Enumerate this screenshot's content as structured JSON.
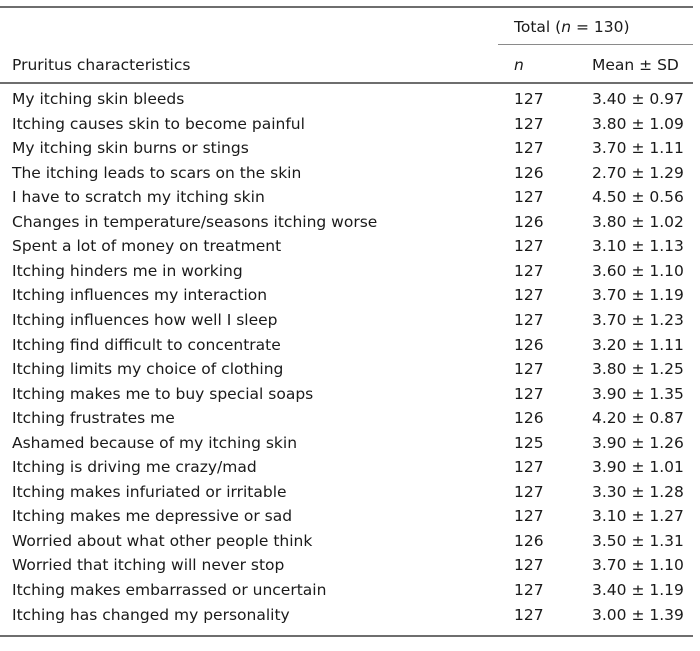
{
  "header": {
    "total_prefix": "Total (",
    "total_n_symbol": "n",
    "total_suffix": " = 130)",
    "label_column": "Pruritus characteristics",
    "n_column": "n",
    "mean_column": "Mean ± SD"
  },
  "rows": [
    {
      "label": "My itching skin bleeds",
      "n": "127",
      "mean": "3.40 ± 0.97"
    },
    {
      "label": "Itching causes skin to become painful",
      "n": "127",
      "mean": "3.80 ± 1.09"
    },
    {
      "label": "My itching skin burns or stings",
      "n": "127",
      "mean": "3.70 ± 1.11"
    },
    {
      "label": "The itching leads to scars on the skin",
      "n": "126",
      "mean": "2.70 ± 1.29"
    },
    {
      "label": "I have to scratch my itching skin",
      "n": "127",
      "mean": "4.50 ± 0.56"
    },
    {
      "label": "Changes in temperature/seasons itching worse",
      "n": "126",
      "mean": "3.80 ± 1.02"
    },
    {
      "label": "Spent a lot of money on treatment",
      "n": "127",
      "mean": "3.10 ± 1.13"
    },
    {
      "label": "Itching hinders me in working",
      "n": "127",
      "mean": "3.60 ± 1.10"
    },
    {
      "label": "Itching influences my interaction",
      "n": "127",
      "mean": "3.70 ± 1.19"
    },
    {
      "label": "Itching influences how well I sleep",
      "n": "127",
      "mean": "3.70 ± 1.23"
    },
    {
      "label": "Itching find difficult to concentrate",
      "n": "126",
      "mean": "3.20 ± 1.11"
    },
    {
      "label": "Itching limits my choice of clothing",
      "n": "127",
      "mean": "3.80 ± 1.25"
    },
    {
      "label": "Itching makes me to buy special soaps",
      "n": "127",
      "mean": "3.90 ± 1.35"
    },
    {
      "label": "Itching frustrates me",
      "n": "126",
      "mean": "4.20 ± 0.87"
    },
    {
      "label": "Ashamed because of my itching skin",
      "n": "125",
      "mean": "3.90 ± 1.26"
    },
    {
      "label": "Itching is driving me crazy/mad",
      "n": "127",
      "mean": "3.90 ± 1.01"
    },
    {
      "label": "Itching makes infuriated or irritable",
      "n": "127",
      "mean": "3.30 ± 1.28"
    },
    {
      "label": "Itching makes me depressive or sad",
      "n": "127",
      "mean": "3.10 ± 1.27"
    },
    {
      "label": "Worried about what other people think",
      "n": "126",
      "mean": "3.50 ± 1.31"
    },
    {
      "label": "Worried that itching will never stop",
      "n": "127",
      "mean": "3.70 ± 1.10"
    },
    {
      "label": "Itching makes embarrassed or uncertain",
      "n": "127",
      "mean": "3.40 ± 1.19"
    },
    {
      "label": "Itching has changed my personality",
      "n": "127",
      "mean": "3.00 ± 1.39"
    }
  ]
}
